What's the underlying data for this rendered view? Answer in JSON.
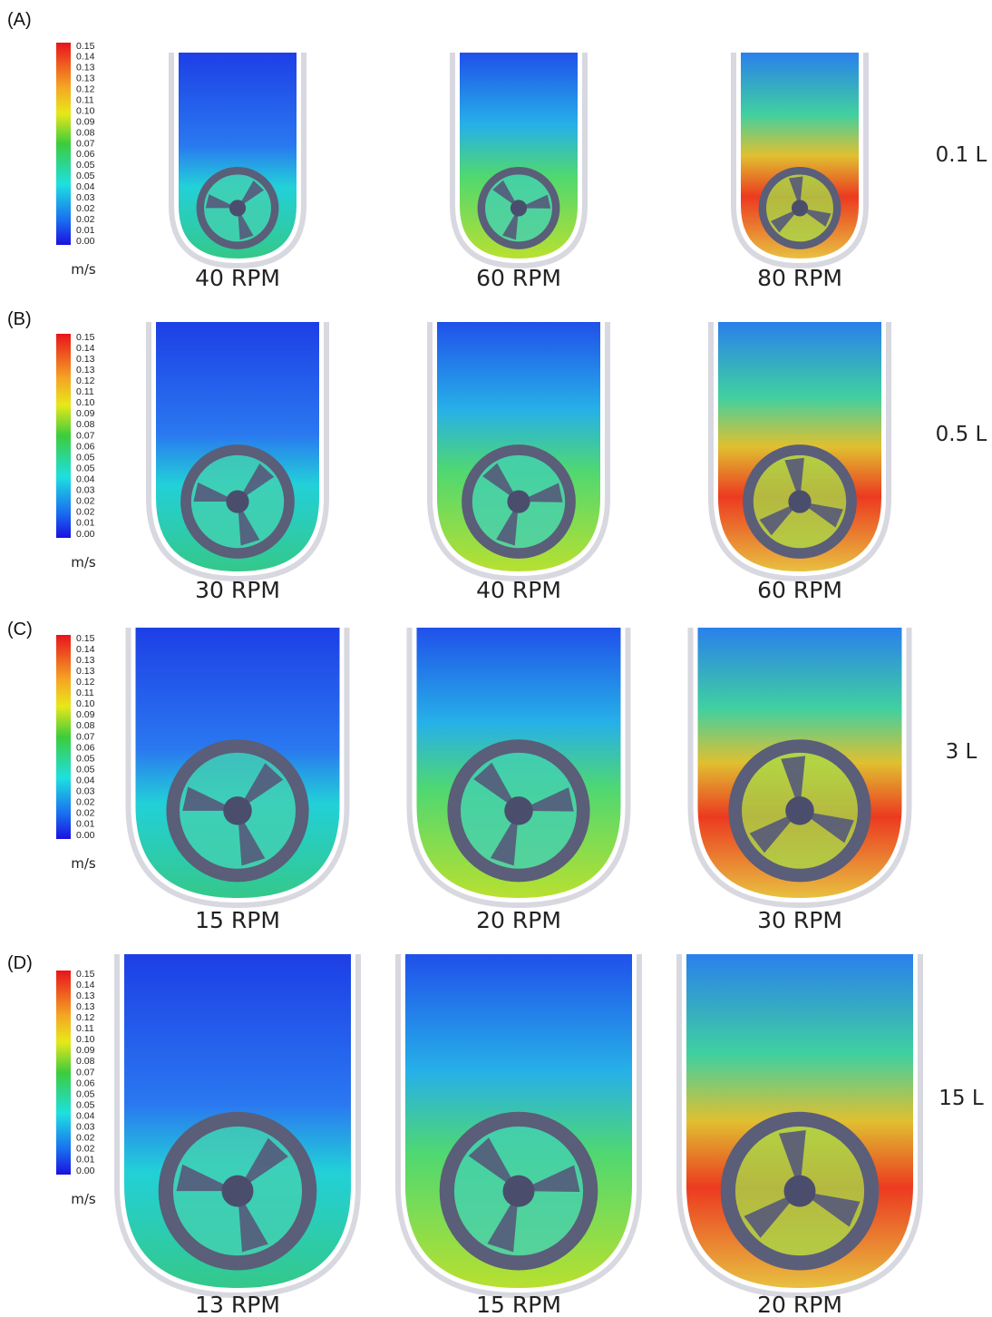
{
  "panels": [
    {
      "label": "(A)",
      "colorbar": {
        "ticks": [
          "0.15",
          "0.14",
          "0.13",
          "0.13",
          "0.12",
          "0.11",
          "0.10",
          "0.09",
          "0.08",
          "0.07",
          "0.06",
          "0.05",
          "0.05",
          "0.04",
          "0.03",
          "0.02",
          "0.02",
          "0.01",
          "0.00"
        ],
        "unit": "m/s"
      },
      "images": [
        {
          "caption": "40 RPM"
        },
        {
          "caption": "60 RPM"
        },
        {
          "caption": "80 RPM"
        }
      ],
      "volume": "0.1 L"
    },
    {
      "label": "(B)",
      "colorbar": {
        "ticks": [
          "0.15",
          "0.14",
          "0.13",
          "0.13",
          "0.12",
          "0.11",
          "0.10",
          "0.09",
          "0.08",
          "0.07",
          "0.06",
          "0.05",
          "0.05",
          "0.04",
          "0.03",
          "0.02",
          "0.02",
          "0.01",
          "0.00"
        ],
        "unit": "m/s"
      },
      "images": [
        {
          "caption": "30 RPM"
        },
        {
          "caption": "40 RPM"
        },
        {
          "caption": "60 RPM"
        }
      ],
      "volume": "0.5 L"
    },
    {
      "label": "(C)",
      "colorbar": {
        "ticks": [
          "0.15",
          "0.14",
          "0.13",
          "0.13",
          "0.12",
          "0.11",
          "0.10",
          "0.09",
          "0.08",
          "0.07",
          "0.06",
          "0.05",
          "0.05",
          "0.04",
          "0.03",
          "0.02",
          "0.02",
          "0.01",
          "0.00"
        ],
        "unit": "m/s"
      },
      "images": [
        {
          "caption": "15 RPM"
        },
        {
          "caption": "20 RPM"
        },
        {
          "caption": "30 RPM"
        }
      ],
      "volume": "3 L"
    },
    {
      "label": "(D)",
      "colorbar": {
        "ticks": [
          "0.15",
          "0.14",
          "0.13",
          "0.13",
          "0.12",
          "0.11",
          "0.10",
          "0.09",
          "0.08",
          "0.07",
          "0.06",
          "0.05",
          "0.05",
          "0.04",
          "0.03",
          "0.02",
          "0.02",
          "0.01",
          "0.00"
        ],
        "unit": "m/s"
      },
      "images": [
        {
          "caption": "13 RPM"
        },
        {
          "caption": "15 RPM"
        },
        {
          "caption": "20 RPM"
        }
      ],
      "volume": "15 L"
    }
  ]
}
